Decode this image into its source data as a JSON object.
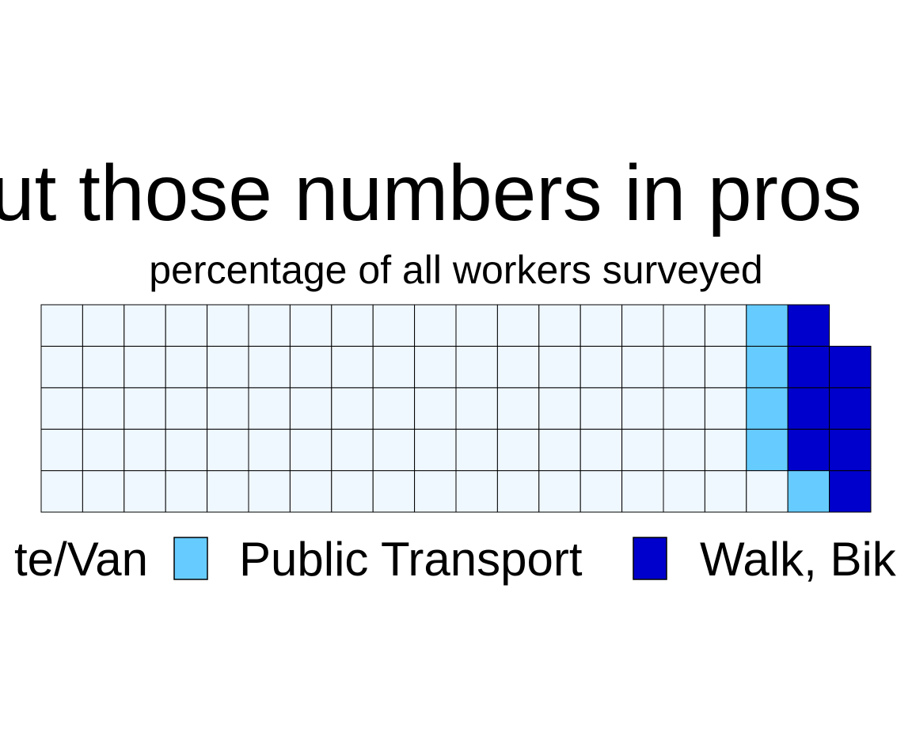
{
  "chart_data": {
    "type": "waffle",
    "title": "ut those numbers in pros",
    "subtitle": "percentage of all workers surveyed",
    "rows": 5,
    "series": [
      {
        "name": "te/Van",
        "color": "#f0f8ff",
        "values": [
          86
        ]
      },
      {
        "name": "Public Transport",
        "color": "#66ccff",
        "values": [
          5
        ]
      },
      {
        "name": "Walk, Bik",
        "color": "#0000cc",
        "values": [
          8
        ]
      }
    ]
  }
}
